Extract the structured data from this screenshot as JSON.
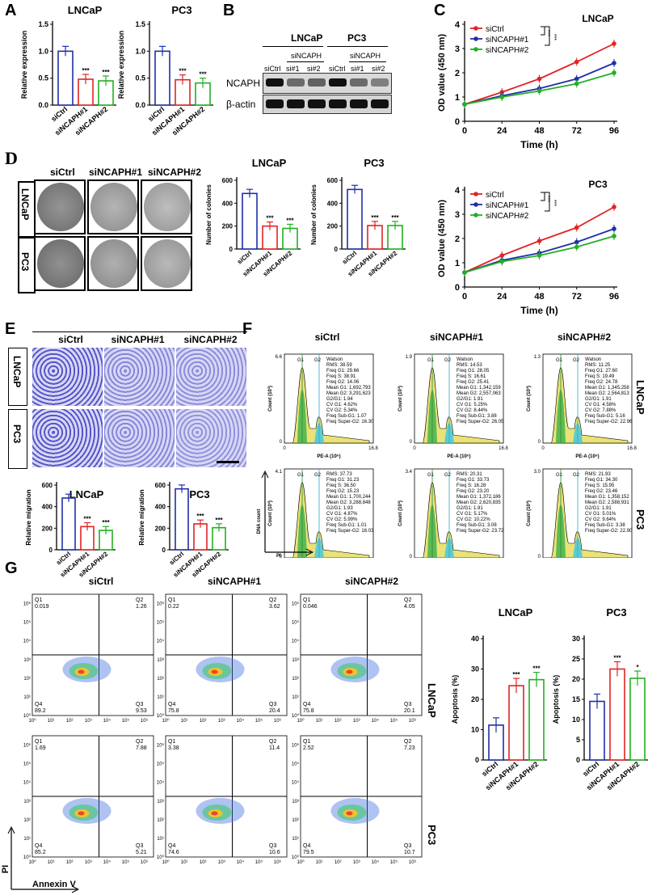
{
  "panel_labels": [
    "A",
    "B",
    "C",
    "D",
    "E",
    "F",
    "G"
  ],
  "colors": {
    "siCtrl": "#1f2fa8",
    "siNCAPH1": "#e02424",
    "siNCAPH2": "#22b022",
    "line_siCtrl": "#e02424",
    "line_siNCAPH1": "#1f2fa8",
    "line_siNCAPH2": "#22b022"
  },
  "panelA": {
    "ylabel": "Relative expression",
    "categories": [
      "siCtrl",
      "siNCAPH#1",
      "siNCAPH#2"
    ],
    "charts": [
      {
        "title": "LNCaP",
        "values": [
          1.0,
          0.48,
          0.45
        ],
        "sig": [
          "",
          "***",
          "***"
        ]
      },
      {
        "title": "PC3",
        "values": [
          1.0,
          0.47,
          0.41
        ],
        "sig": [
          "",
          "***",
          "***"
        ]
      }
    ],
    "yticks": [
      "0.0",
      "0.5",
      "1.0",
      "1.5"
    ]
  },
  "panelB": {
    "headers": [
      "LNCaP",
      "PC3"
    ],
    "sub": "siNCAPH",
    "lanes": [
      "siCtrl",
      "si#1",
      "si#2",
      "siCtrl",
      "si#1",
      "si#2"
    ],
    "rows": [
      "NCAPH",
      "β-actin"
    ]
  },
  "panelC": {
    "xlabel": "Time (h)",
    "ylabel": "OD value (450 nm)",
    "xticks": [
      "0",
      "24",
      "48",
      "72",
      "96"
    ],
    "yticks": [
      "0",
      "1",
      "2",
      "3",
      "4"
    ],
    "legend": [
      "siCtrl",
      "siNCAPH#1",
      "siNCAPH#2"
    ],
    "sig": [
      "***",
      "***"
    ],
    "charts": [
      {
        "title": "LNCaP",
        "series": [
          [
            0.7,
            1.2,
            1.75,
            2.45,
            3.2
          ],
          [
            0.7,
            1.05,
            1.35,
            1.75,
            2.4
          ],
          [
            0.7,
            1.0,
            1.25,
            1.55,
            2.0
          ]
        ]
      },
      {
        "title": "PC3",
        "series": [
          [
            0.6,
            1.3,
            1.9,
            2.45,
            3.3
          ],
          [
            0.6,
            1.1,
            1.4,
            1.85,
            2.4
          ],
          [
            0.6,
            1.05,
            1.3,
            1.65,
            2.1
          ]
        ]
      }
    ]
  },
  "panelD": {
    "cond": [
      "siCtrl",
      "siNCAPH#1",
      "siNCAPH#2"
    ],
    "rows": [
      "LNCaP",
      "PC3"
    ],
    "ylabel": "Number of colonies",
    "yticks": [
      "0",
      "200",
      "400",
      "600"
    ],
    "charts": [
      {
        "title": "LNCaP",
        "values": [
          485,
          200,
          180
        ],
        "sig": [
          "",
          "***",
          "***"
        ]
      },
      {
        "title": "PC3",
        "values": [
          520,
          205,
          205
        ],
        "sig": [
          "",
          "***",
          "***"
        ]
      }
    ]
  },
  "panelE": {
    "cond": [
      "siCtrl",
      "siNCAPH#1",
      "siNCAPH#2"
    ],
    "rows": [
      "LNCaP",
      "PC3"
    ],
    "ylabel": "Relative migration",
    "yticks": [
      "0",
      "200",
      "400",
      "600"
    ],
    "charts": [
      {
        "title": "LNCaP",
        "values": [
          480,
          215,
          180
        ],
        "sig": [
          "",
          "***",
          "***"
        ]
      },
      {
        "title": "PC3",
        "values": [
          565,
          240,
          205
        ],
        "sig": [
          "",
          "***",
          "***"
        ]
      }
    ]
  },
  "panelF": {
    "cond": [
      "siCtrl",
      "siNCAPH#1",
      "siNCAPH#2"
    ],
    "rows": [
      "LNCaP",
      "PC3"
    ],
    "ylabel": "Count (10³)",
    "xlabel": "PE-A (10⁶)",
    "gates": [
      "G1",
      "G2"
    ],
    "axis_note_y": "DNA count",
    "axis_note_x": "PI",
    "plots": [
      {
        "ymax": "6.6",
        "stats": [
          "Watson",
          "RMS: 38.59",
          "Freq G1: 29.66",
          "Freq S: 38.91",
          "Freq G2: 14.06",
          "Mean G1: 1,692,793",
          "Mean G2: 3,291,623",
          "G2/G1: 1.94",
          "CV G1: 4.62%",
          "CV G2: 5.34%",
          "Freq Sub-G1: 1.07",
          "Freq Super-G2: 16.30"
        ]
      },
      {
        "ymax": "1.9",
        "stats": [
          "Watson",
          "RMS: 14.53",
          "Freq G1: 28.05",
          "Freq S: 16.61",
          "Freq G2: 25.41",
          "Mean G1: 1,342,159",
          "Mean G2: 2,557,063",
          "G2/G1: 1.91",
          "CV G1: 5.25%",
          "CV G2: 8.44%",
          "Freq Sub-G1: 3.88",
          "Freq Super-G2: 26.05"
        ]
      },
      {
        "ymax": "1.3",
        "stats": [
          "Watson",
          "RMS: 11.25",
          "Freq G1: 27.60",
          "Freq S: 19.49",
          "Freq G2: 24.78",
          "Mean G1: 1,345,258",
          "Mean G2: 2,564,813",
          "G2/G1: 1.91",
          "CV G1: 4.58%",
          "CV G2: 7.88%",
          "Freq Sub-G1: 5.16",
          "Freq Super-G2: 22.96"
        ]
      },
      {
        "ymax": "4.1",
        "stats": [
          "RMS: 37.73",
          "Freq G1: 31.23",
          "Freq S: 36.50",
          "Freq G2: 15.23",
          "Mean G1: 1,700,244",
          "Mean G2: 3,288,848",
          "G2/G1: 1.93",
          "CV G1: 4.87%",
          "CV G2: 5.99%",
          "Freq Sub-G1: 1.01",
          "Freq Super-G2: 16.03"
        ]
      },
      {
        "ymax": "3.4",
        "stats": [
          "RMS: 20.31",
          "Freq G1: 33.73",
          "Freq S: 16.28",
          "Freq G2: 23.20",
          "Mean G1: 1,372,186",
          "Mean G2: 2,620,835",
          "G2/G1: 1.91",
          "CV G1: 5.17%",
          "CV G2: 10.22%",
          "Freq Sub-G1: 3.08",
          "Freq Super-G2: 23.72"
        ]
      },
      {
        "ymax": "3.0",
        "stats": [
          "RMS: 21.93",
          "Freq G1: 34.30",
          "Freq S: 15.95",
          "Freq G2: 23.46",
          "Mean G1: 1,358,152",
          "Mean G2: 2,588,931",
          "G2/G1: 1.91",
          "CV G1: 5.01%",
          "CV G2: 9.64%",
          "Freq Sub-G1: 3.38",
          "Freq Super-G2: 22.90"
        ]
      }
    ]
  },
  "panelG": {
    "cond": [
      "siCtrl",
      "siNCAPH#1",
      "siNCAPH#2"
    ],
    "rows": [
      "LNCaP",
      "PC3"
    ],
    "xlabel": "Annexin V",
    "ylabel": "PI",
    "plots": [
      {
        "q1": "0.019",
        "q2": "1.26",
        "q3": "9.53",
        "q4": "89.2"
      },
      {
        "q1": "0.22",
        "q2": "3.62",
        "q3": "20.4",
        "q4": "75.8"
      },
      {
        "q1": "0.046",
        "q2": "4.05",
        "q3": "20.1",
        "q4": "75.8"
      },
      {
        "q1": "1.69",
        "q2": "7.88",
        "q3": "5.21",
        "q4": "85.2"
      },
      {
        "q1": "3.38",
        "q2": "11.4",
        "q3": "10.6",
        "q4": "74.6"
      },
      {
        "q1": "2.52",
        "q2": "7.23",
        "q3": "10.7",
        "q4": "79.5"
      }
    ],
    "ylabel_bar": "Apoptosis (%)",
    "charts": [
      {
        "title": "LNCaP",
        "values": [
          11.5,
          24.5,
          26.5
        ],
        "sig": [
          "",
          "***",
          "***"
        ],
        "yticks": [
          "0",
          "10",
          "20",
          "30",
          "40"
        ]
      },
      {
        "title": "PC3",
        "values": [
          14.5,
          22.5,
          20.2
        ],
        "sig": [
          "",
          "***",
          "*"
        ],
        "yticks": [
          "0",
          "5",
          "10",
          "15",
          "20",
          "25",
          "30"
        ]
      }
    ]
  }
}
